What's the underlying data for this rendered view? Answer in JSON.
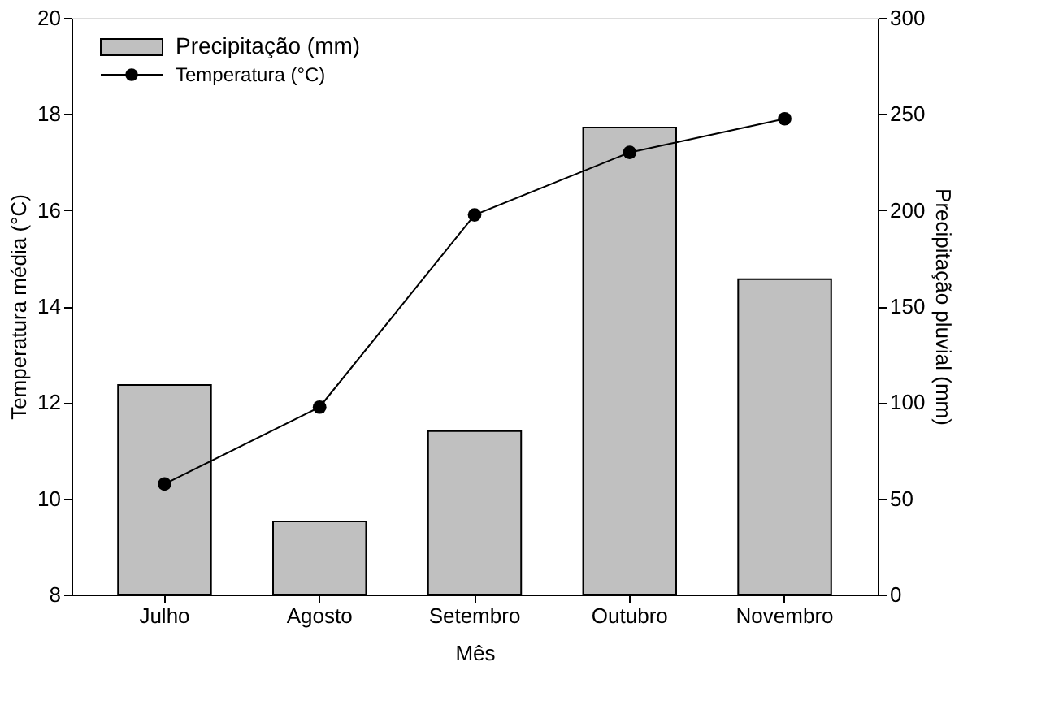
{
  "chart_data": {
    "type": "bar",
    "xlabel": "Mês",
    "ylabel": "Temperatura média (°C)",
    "y2label": "Precipitação pluvial (mm)",
    "categories": [
      "Julho",
      "Agosto",
      "Setembro",
      "Outubro",
      "Novembro"
    ],
    "series": [
      {
        "name": "Precipitação (mm)",
        "axis": "y2",
        "color": "#c0c0c0",
        "values": [
          109,
          38,
          85,
          243,
          164
        ]
      },
      {
        "name": "Temperatura  (°C)",
        "type": "line",
        "color": "#000000",
        "marker": "circle",
        "line_style": "solid",
        "values": [
          10.3,
          11.9,
          15.9,
          17.2,
          17.9
        ]
      }
    ],
    "ylim": [
      8,
      20
    ],
    "yticks": [
      8,
      10,
      12,
      14,
      16,
      18,
      20
    ],
    "y2lim": [
      0,
      300
    ],
    "y2ticks": [
      0,
      50,
      100,
      150,
      200,
      250,
      300
    ],
    "legend": "top left",
    "grid": false
  }
}
